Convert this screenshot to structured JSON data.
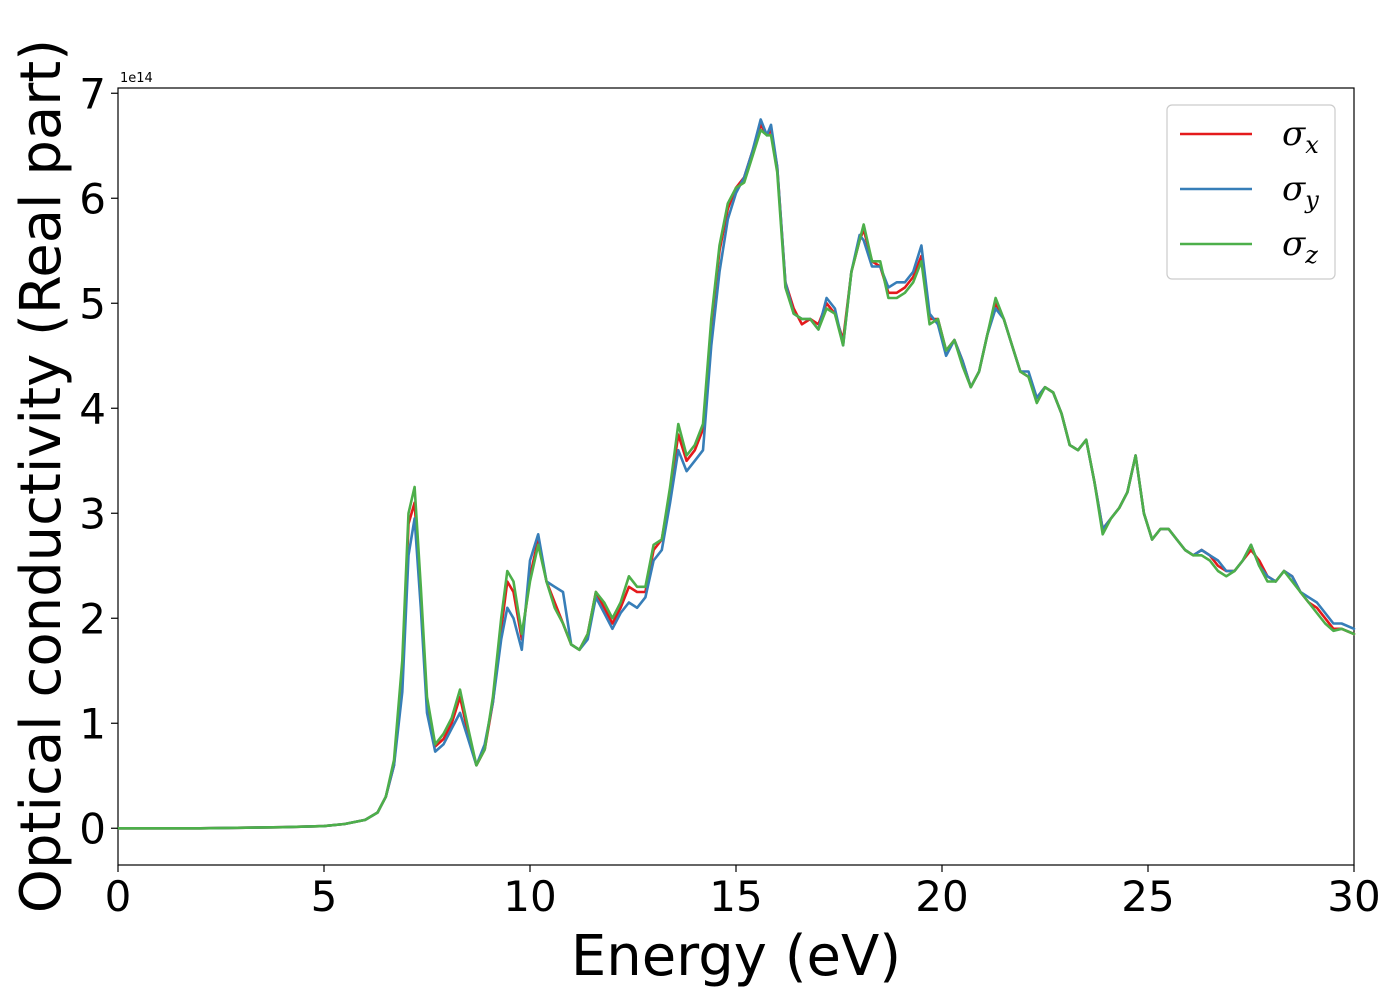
{
  "chart_data": {
    "type": "line",
    "xlabel": "Energy (eV)",
    "ylabel": "Optical conductivity (Real part)",
    "y_offset_label": "1e14",
    "xlim": [
      0,
      30
    ],
    "ylim": [
      -0.35,
      7.05
    ],
    "x_ticks": [
      0,
      5,
      10,
      15,
      20,
      25,
      30
    ],
    "y_ticks": [
      0,
      1,
      2,
      3,
      4,
      5,
      6,
      7
    ],
    "x_tick_labels": [
      "0",
      "5",
      "10",
      "15",
      "20",
      "25",
      "30"
    ],
    "y_tick_labels": [
      "0",
      "1",
      "2",
      "3",
      "4",
      "5",
      "6",
      "7"
    ],
    "grid": false,
    "legend_position": "top-right",
    "series": [
      {
        "name": "σx",
        "legend_base": "σ",
        "legend_sub": "x",
        "color": "#e41a1c",
        "x": [
          0,
          2,
          4,
          5,
          5.5,
          6,
          6.3,
          6.5,
          6.7,
          6.9,
          7.05,
          7.2,
          7.35,
          7.5,
          7.7,
          7.9,
          8.1,
          8.3,
          8.5,
          8.7,
          8.9,
          9.1,
          9.3,
          9.45,
          9.6,
          9.8,
          10.0,
          10.2,
          10.4,
          10.6,
          10.8,
          11.0,
          11.2,
          11.4,
          11.6,
          11.8,
          12.0,
          12.2,
          12.4,
          12.6,
          12.8,
          13.0,
          13.2,
          13.4,
          13.6,
          13.8,
          14.0,
          14.2,
          14.4,
          14.6,
          14.8,
          15.0,
          15.2,
          15.4,
          15.6,
          15.75,
          15.85,
          16.0,
          16.2,
          16.4,
          16.6,
          16.8,
          17.0,
          17.2,
          17.4,
          17.6,
          17.8,
          18.0,
          18.1,
          18.3,
          18.5,
          18.7,
          18.9,
          19.1,
          19.3,
          19.5,
          19.7,
          19.9,
          20.1,
          20.3,
          20.5,
          20.7,
          20.9,
          21.1,
          21.3,
          21.5,
          21.7,
          21.9,
          22.1,
          22.3,
          22.5,
          22.7,
          22.9,
          23.1,
          23.3,
          23.5,
          23.7,
          23.9,
          24.1,
          24.3,
          24.5,
          24.7,
          24.9,
          25.1,
          25.3,
          25.5,
          25.7,
          25.9,
          26.1,
          26.3,
          26.5,
          26.7,
          26.9,
          27.1,
          27.3,
          27.5,
          27.7,
          27.9,
          28.1,
          28.3,
          28.5,
          28.7,
          28.9,
          29.1,
          29.3,
          29.5,
          29.7,
          30.0
        ],
        "y": [
          0,
          0,
          0.01,
          0.02,
          0.04,
          0.08,
          0.15,
          0.3,
          0.6,
          1.5,
          2.9,
          3.1,
          2.2,
          1.2,
          0.78,
          0.85,
          1.0,
          1.25,
          0.9,
          0.6,
          0.75,
          1.2,
          1.9,
          2.35,
          2.25,
          1.8,
          2.4,
          2.75,
          2.35,
          2.15,
          1.95,
          1.75,
          1.7,
          1.85,
          2.25,
          2.1,
          1.95,
          2.1,
          2.3,
          2.25,
          2.25,
          2.65,
          2.75,
          3.2,
          3.75,
          3.5,
          3.6,
          3.8,
          4.8,
          5.5,
          5.9,
          6.1,
          6.2,
          6.45,
          6.7,
          6.6,
          6.65,
          6.3,
          5.2,
          4.95,
          4.8,
          4.85,
          4.8,
          5.0,
          4.9,
          4.65,
          5.3,
          5.6,
          5.7,
          5.4,
          5.35,
          5.1,
          5.1,
          5.15,
          5.25,
          5.45,
          4.85,
          4.85,
          4.55,
          4.65,
          4.45,
          4.2,
          4.35,
          4.7,
          5.0,
          4.85,
          4.6,
          4.35,
          4.3,
          4.1,
          4.2,
          4.15,
          3.95,
          3.65,
          3.6,
          3.7,
          3.3,
          2.85,
          2.95,
          3.05,
          3.2,
          3.55,
          3.0,
          2.75,
          2.85,
          2.85,
          2.75,
          2.65,
          2.6,
          2.65,
          2.6,
          2.5,
          2.45,
          2.45,
          2.55,
          2.65,
          2.55,
          2.4,
          2.35,
          2.45,
          2.4,
          2.25,
          2.15,
          2.1,
          2.0,
          1.9,
          1.9,
          1.85
        ]
      },
      {
        "name": "σy",
        "legend_base": "σ",
        "legend_sub": "y",
        "color": "#377eb8",
        "x": [
          0,
          2,
          4,
          5,
          5.5,
          6,
          6.3,
          6.5,
          6.7,
          6.9,
          7.05,
          7.2,
          7.35,
          7.5,
          7.7,
          7.9,
          8.1,
          8.3,
          8.5,
          8.7,
          8.9,
          9.1,
          9.3,
          9.45,
          9.6,
          9.8,
          10.0,
          10.2,
          10.4,
          10.6,
          10.8,
          11.0,
          11.2,
          11.4,
          11.6,
          11.8,
          12.0,
          12.2,
          12.4,
          12.6,
          12.8,
          13.0,
          13.2,
          13.4,
          13.6,
          13.8,
          14.0,
          14.2,
          14.4,
          14.6,
          14.8,
          15.0,
          15.2,
          15.4,
          15.6,
          15.75,
          15.85,
          16.0,
          16.2,
          16.4,
          16.6,
          16.8,
          17.0,
          17.2,
          17.4,
          17.6,
          17.8,
          18.0,
          18.1,
          18.3,
          18.5,
          18.7,
          18.9,
          19.1,
          19.3,
          19.5,
          19.7,
          19.9,
          20.1,
          20.3,
          20.5,
          20.7,
          20.9,
          21.1,
          21.3,
          21.5,
          21.7,
          21.9,
          22.1,
          22.3,
          22.5,
          22.7,
          22.9,
          23.1,
          23.3,
          23.5,
          23.7,
          23.9,
          24.1,
          24.3,
          24.5,
          24.7,
          24.9,
          25.1,
          25.3,
          25.5,
          25.7,
          25.9,
          26.1,
          26.3,
          26.5,
          26.7,
          26.9,
          27.1,
          27.3,
          27.5,
          27.7,
          27.9,
          28.1,
          28.3,
          28.5,
          28.7,
          28.9,
          29.1,
          29.3,
          29.5,
          29.7,
          30.0
        ],
        "y": [
          0,
          0,
          0.01,
          0.02,
          0.04,
          0.08,
          0.15,
          0.3,
          0.6,
          1.3,
          2.6,
          2.95,
          2.1,
          1.1,
          0.73,
          0.8,
          0.95,
          1.1,
          0.85,
          0.6,
          0.8,
          1.2,
          1.8,
          2.1,
          2.0,
          1.7,
          2.55,
          2.8,
          2.35,
          2.3,
          2.25,
          1.75,
          1.7,
          1.8,
          2.2,
          2.05,
          1.9,
          2.05,
          2.15,
          2.1,
          2.2,
          2.55,
          2.65,
          3.1,
          3.6,
          3.4,
          3.5,
          3.6,
          4.6,
          5.3,
          5.8,
          6.05,
          6.2,
          6.45,
          6.75,
          6.6,
          6.7,
          6.3,
          5.2,
          4.9,
          4.85,
          4.85,
          4.75,
          5.05,
          4.95,
          4.6,
          5.3,
          5.65,
          5.6,
          5.35,
          5.35,
          5.15,
          5.2,
          5.2,
          5.3,
          5.55,
          4.9,
          4.8,
          4.5,
          4.65,
          4.45,
          4.2,
          4.35,
          4.7,
          4.95,
          4.85,
          4.6,
          4.35,
          4.35,
          4.1,
          4.2,
          4.15,
          3.95,
          3.65,
          3.6,
          3.7,
          3.3,
          2.85,
          2.95,
          3.05,
          3.2,
          3.55,
          3.0,
          2.75,
          2.85,
          2.85,
          2.75,
          2.65,
          2.6,
          2.65,
          2.6,
          2.55,
          2.45,
          2.45,
          2.55,
          2.7,
          2.5,
          2.4,
          2.35,
          2.45,
          2.4,
          2.25,
          2.2,
          2.15,
          2.05,
          1.95,
          1.95,
          1.9
        ]
      },
      {
        "name": "σz",
        "legend_base": "σ",
        "legend_sub": "z",
        "color": "#4daf4a",
        "x": [
          0,
          2,
          4,
          5,
          5.5,
          6,
          6.3,
          6.5,
          6.7,
          6.9,
          7.05,
          7.2,
          7.35,
          7.5,
          7.7,
          7.9,
          8.1,
          8.3,
          8.5,
          8.7,
          8.9,
          9.1,
          9.3,
          9.45,
          9.6,
          9.8,
          10.0,
          10.2,
          10.4,
          10.6,
          10.8,
          11.0,
          11.2,
          11.4,
          11.6,
          11.8,
          12.0,
          12.2,
          12.4,
          12.6,
          12.8,
          13.0,
          13.2,
          13.4,
          13.6,
          13.8,
          14.0,
          14.2,
          14.4,
          14.6,
          14.8,
          15.0,
          15.2,
          15.4,
          15.6,
          15.75,
          15.85,
          16.0,
          16.2,
          16.4,
          16.6,
          16.8,
          17.0,
          17.2,
          17.4,
          17.6,
          17.8,
          18.0,
          18.1,
          18.3,
          18.5,
          18.7,
          18.9,
          19.1,
          19.3,
          19.5,
          19.7,
          19.9,
          20.1,
          20.3,
          20.5,
          20.7,
          20.9,
          21.1,
          21.3,
          21.5,
          21.7,
          21.9,
          22.1,
          22.3,
          22.5,
          22.7,
          22.9,
          23.1,
          23.3,
          23.5,
          23.7,
          23.9,
          24.1,
          24.3,
          24.5,
          24.7,
          24.9,
          25.1,
          25.3,
          25.5,
          25.7,
          25.9,
          26.1,
          26.3,
          26.5,
          26.7,
          26.9,
          27.1,
          27.3,
          27.5,
          27.7,
          27.9,
          28.1,
          28.3,
          28.5,
          28.7,
          28.9,
          29.1,
          29.3,
          29.5,
          29.7,
          30.0
        ],
        "y": [
          0,
          0,
          0.01,
          0.02,
          0.04,
          0.08,
          0.15,
          0.3,
          0.65,
          1.6,
          3.0,
          3.25,
          2.3,
          1.25,
          0.8,
          0.9,
          1.05,
          1.32,
          0.95,
          0.6,
          0.75,
          1.25,
          2.0,
          2.45,
          2.35,
          1.85,
          2.35,
          2.7,
          2.35,
          2.1,
          1.95,
          1.75,
          1.7,
          1.85,
          2.25,
          2.15,
          2.0,
          2.15,
          2.4,
          2.3,
          2.3,
          2.7,
          2.75,
          3.25,
          3.85,
          3.55,
          3.65,
          3.85,
          4.85,
          5.55,
          5.95,
          6.1,
          6.15,
          6.4,
          6.65,
          6.6,
          6.6,
          6.25,
          5.15,
          4.9,
          4.85,
          4.85,
          4.75,
          4.95,
          4.9,
          4.6,
          5.3,
          5.6,
          5.75,
          5.4,
          5.4,
          5.05,
          5.05,
          5.1,
          5.2,
          5.4,
          4.8,
          4.85,
          4.55,
          4.65,
          4.4,
          4.2,
          4.35,
          4.7,
          5.05,
          4.85,
          4.6,
          4.35,
          4.3,
          4.05,
          4.2,
          4.15,
          3.95,
          3.65,
          3.6,
          3.7,
          3.3,
          2.8,
          2.95,
          3.05,
          3.2,
          3.55,
          3.0,
          2.75,
          2.85,
          2.85,
          2.75,
          2.65,
          2.6,
          2.6,
          2.55,
          2.45,
          2.4,
          2.45,
          2.55,
          2.7,
          2.5,
          2.35,
          2.35,
          2.45,
          2.35,
          2.25,
          2.15,
          2.05,
          1.95,
          1.88,
          1.9,
          1.85
        ]
      }
    ]
  }
}
